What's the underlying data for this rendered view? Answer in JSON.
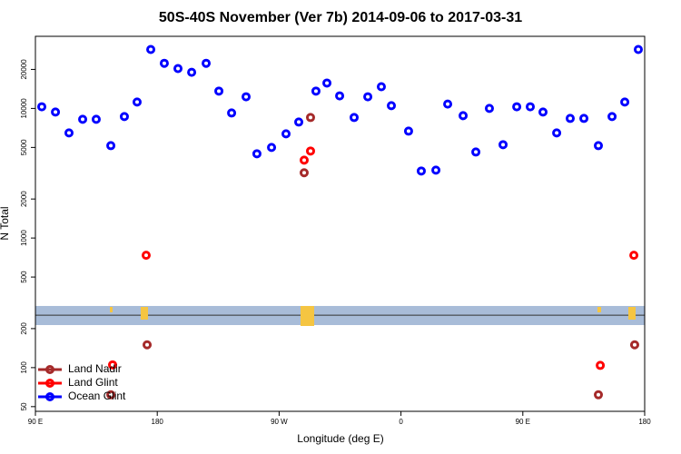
{
  "chart_data": {
    "type": "scatter",
    "title": "50S-40S November (Ver 7b)   2014-09-06 to 2017-03-31",
    "x_label": "Longitude (deg E)",
    "y_label": "N Total",
    "log_y": true,
    "xlim": [
      90,
      540
    ],
    "xticks": [
      {
        "value": 90,
        "label": "90 E"
      },
      {
        "value": 180,
        "label": "180"
      },
      {
        "value": 270,
        "label": "90 W"
      },
      {
        "value": 360,
        "label": "0"
      },
      {
        "value": 450,
        "label": "90 E"
      },
      {
        "value": 540,
        "label": "180"
      }
    ],
    "ylim": [
      46,
      36000
    ],
    "yticks": [
      50,
      100,
      200,
      500,
      1000,
      2000,
      5000,
      10000,
      20000
    ],
    "band": [
      213,
      299
    ],
    "band_line": 254,
    "band_color": "#a8bcd8",
    "legend": "bottom-left",
    "series": [
      {
        "name": "Land Nadir",
        "color": "#a52a2a",
        "x": [
          145.7,
          172.5,
          288.5,
          293.2,
          505.8,
          532.6
        ],
        "values": [
          61.7,
          150,
          3190,
          8510,
          61.7,
          150
        ]
      },
      {
        "name": "Land Glint",
        "color": "#ff0000",
        "x": [
          147,
          171.8,
          288.5,
          293.2,
          507.2,
          532
        ],
        "values": [
          105,
          736,
          3990,
          4690,
          104,
          736
        ]
      },
      {
        "name": "Ocean Glint",
        "color": "#0000ff",
        "x": [
          94.7,
          104.8,
          114.8,
          124.9,
          134.9,
          145.7,
          155.7,
          165.1,
          175.2,
          185.2,
          195.3,
          205.4,
          216.1,
          225.5,
          234.9,
          245.6,
          253.6,
          264.4,
          275.1,
          284.5,
          297.2,
          305.3,
          314.7,
          325.4,
          335.5,
          345.5,
          352.9,
          365.6,
          375.0,
          385.8,
          394.5,
          405.9,
          415.3,
          425.3,
          435.4,
          445.5,
          455.5,
          464.9,
          475.0,
          485.0,
          495.1,
          505.8,
          515.9,
          525.3,
          535.3
        ],
        "values": [
          10300,
          9380,
          6470,
          8240,
          8240,
          5160,
          8650,
          11200,
          28500,
          22300,
          20300,
          19000,
          22300,
          13600,
          9220,
          12300,
          4470,
          5000,
          6370,
          7850,
          13600,
          15700,
          12500,
          8510,
          12300,
          14700,
          10500,
          6680,
          3290,
          3340,
          10800,
          8790,
          4610,
          10000,
          5250,
          10300,
          10300,
          9380,
          6470,
          8370,
          8370,
          5160,
          8650,
          11200,
          28500
        ]
      }
    ]
  }
}
